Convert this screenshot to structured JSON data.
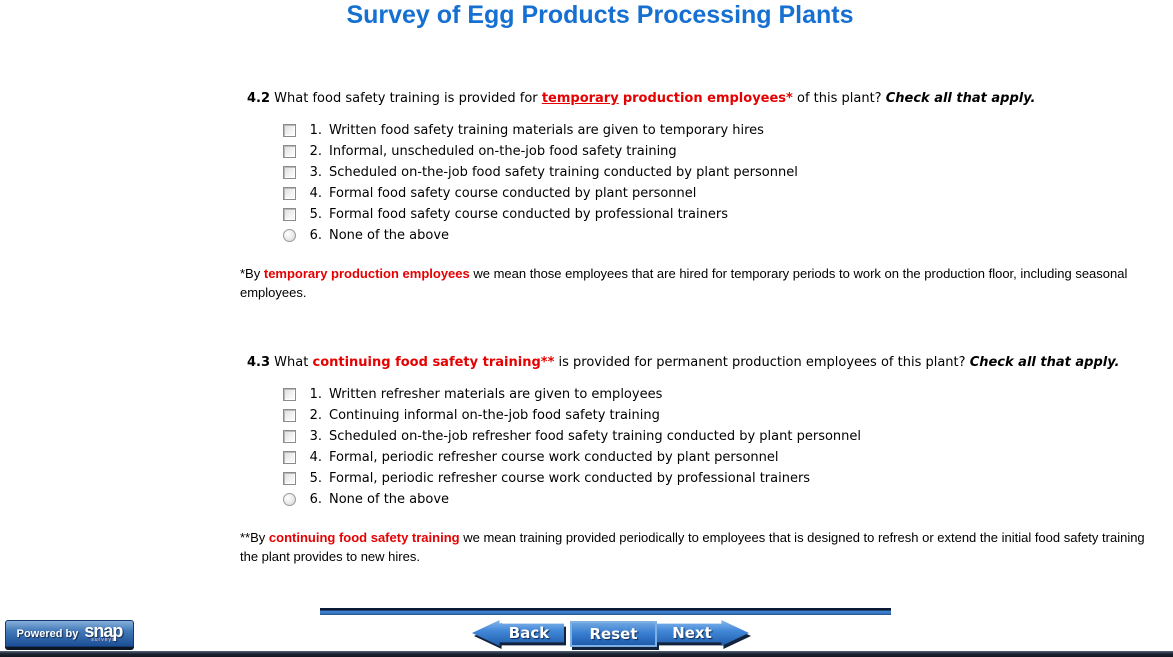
{
  "title": "Survey of Egg Products Processing Plants",
  "colors": {
    "title_blue": "#1570d1",
    "accent_red": "#e60000",
    "button_blue": "#3a7fd2",
    "bar_navy": "#0b1a36"
  },
  "questions": [
    {
      "number": "4.2",
      "text_before": "What food safety training is provided for",
      "red_underlined": "temporary",
      "red_text": "production employees*",
      "text_after": "of this plant?",
      "instruction": "Check all that apply.",
      "options": [
        {
          "num": "1.",
          "label": "Written food safety training materials are given to temporary hires",
          "control": "checkbox"
        },
        {
          "num": "2.",
          "label": "Informal, unscheduled on-the-job food safety training",
          "control": "checkbox"
        },
        {
          "num": "3.",
          "label": "Scheduled on-the-job food safety training conducted by plant personnel",
          "control": "checkbox"
        },
        {
          "num": "4.",
          "label": "Formal food safety course conducted by plant personnel",
          "control": "checkbox"
        },
        {
          "num": "5.",
          "label": "Formal food safety course conducted by professional trainers",
          "control": "checkbox"
        },
        {
          "num": "6.",
          "label": "None of the above",
          "control": "radio"
        }
      ]
    },
    {
      "number": "4.3",
      "text_before": "What",
      "red_underlined": "",
      "red_text": "continuing food safety training**",
      "text_after": "is provided for permanent production employees of this plant?",
      "instruction": "Check all that apply.",
      "options": [
        {
          "num": "1.",
          "label": "Written refresher materials are given to employees",
          "control": "checkbox"
        },
        {
          "num": "2.",
          "label": "Continuing informal on-the-job food safety training",
          "control": "checkbox"
        },
        {
          "num": "3.",
          "label": "Scheduled on-the-job refresher food safety training conducted by plant personnel",
          "control": "checkbox"
        },
        {
          "num": "4.",
          "label": "Formal, periodic refresher course work conducted by plant personnel",
          "control": "checkbox"
        },
        {
          "num": "5.",
          "label": "Formal, periodic refresher course work conducted by professional trainers",
          "control": "checkbox"
        },
        {
          "num": "6.",
          "label": "None of the above",
          "control": "radio"
        }
      ]
    }
  ],
  "footnotes": [
    {
      "marker": "*By",
      "term": "temporary production employees",
      "text": "we mean those employees that are hired for temporary periods to work on the production floor, including seasonal employees."
    },
    {
      "marker": "**By",
      "term": "continuing food safety training",
      "text": "we mean training provided periodically to employees that is designed to refresh or extend the initial food safety training the plant provides to new hires."
    }
  ],
  "nav": {
    "back": "Back",
    "reset": "Reset",
    "next": "Next"
  },
  "footer": {
    "powered_by": "Powered by",
    "brand": "snap",
    "brand_sub": "surveys"
  }
}
